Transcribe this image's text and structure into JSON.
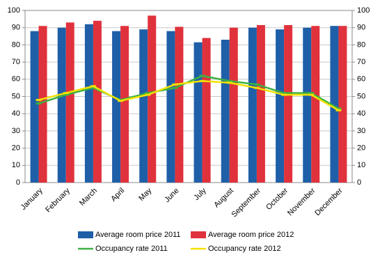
{
  "chart_data": {
    "type": "bar",
    "categories": [
      "January",
      "February",
      "March",
      "April",
      "May",
      "June",
      "July",
      "August",
      "September",
      "October",
      "November",
      "December"
    ],
    "series": [
      {
        "name": "Average room price 2011",
        "color": "#1f5fa8",
        "type": "bar",
        "values": [
          88,
          90,
          92,
          88,
          89,
          88,
          81.5,
          83,
          90,
          89,
          90,
          91
        ]
      },
      {
        "name": "Average room price 2012",
        "color": "#e0323c",
        "type": "bar",
        "values": [
          91,
          93,
          94,
          91,
          97,
          90.5,
          84,
          90,
          91.5,
          91.5,
          91,
          91
        ]
      },
      {
        "name": "Occupancy rate 2011",
        "color": "#3cb043",
        "type": "line",
        "axis": "y2",
        "values": [
          46,
          51,
          55,
          48,
          52,
          55,
          62,
          59,
          57,
          52,
          52,
          43
        ]
      },
      {
        "name": "Occupancy rate 2012",
        "color": "#f2e200",
        "type": "line",
        "axis": "y2",
        "values": [
          48,
          52,
          56,
          47.5,
          51,
          57,
          59,
          58,
          55,
          51,
          51,
          42
        ]
      }
    ],
    "ylim": [
      0,
      100
    ],
    "yticks": [
      0,
      10,
      20,
      30,
      40,
      50,
      60,
      70,
      80,
      90,
      100
    ],
    "y2lim": [
      0,
      100
    ],
    "y2ticks": [
      0,
      10,
      20,
      30,
      40,
      50,
      60,
      70,
      80,
      90,
      100
    ],
    "grid": true
  }
}
